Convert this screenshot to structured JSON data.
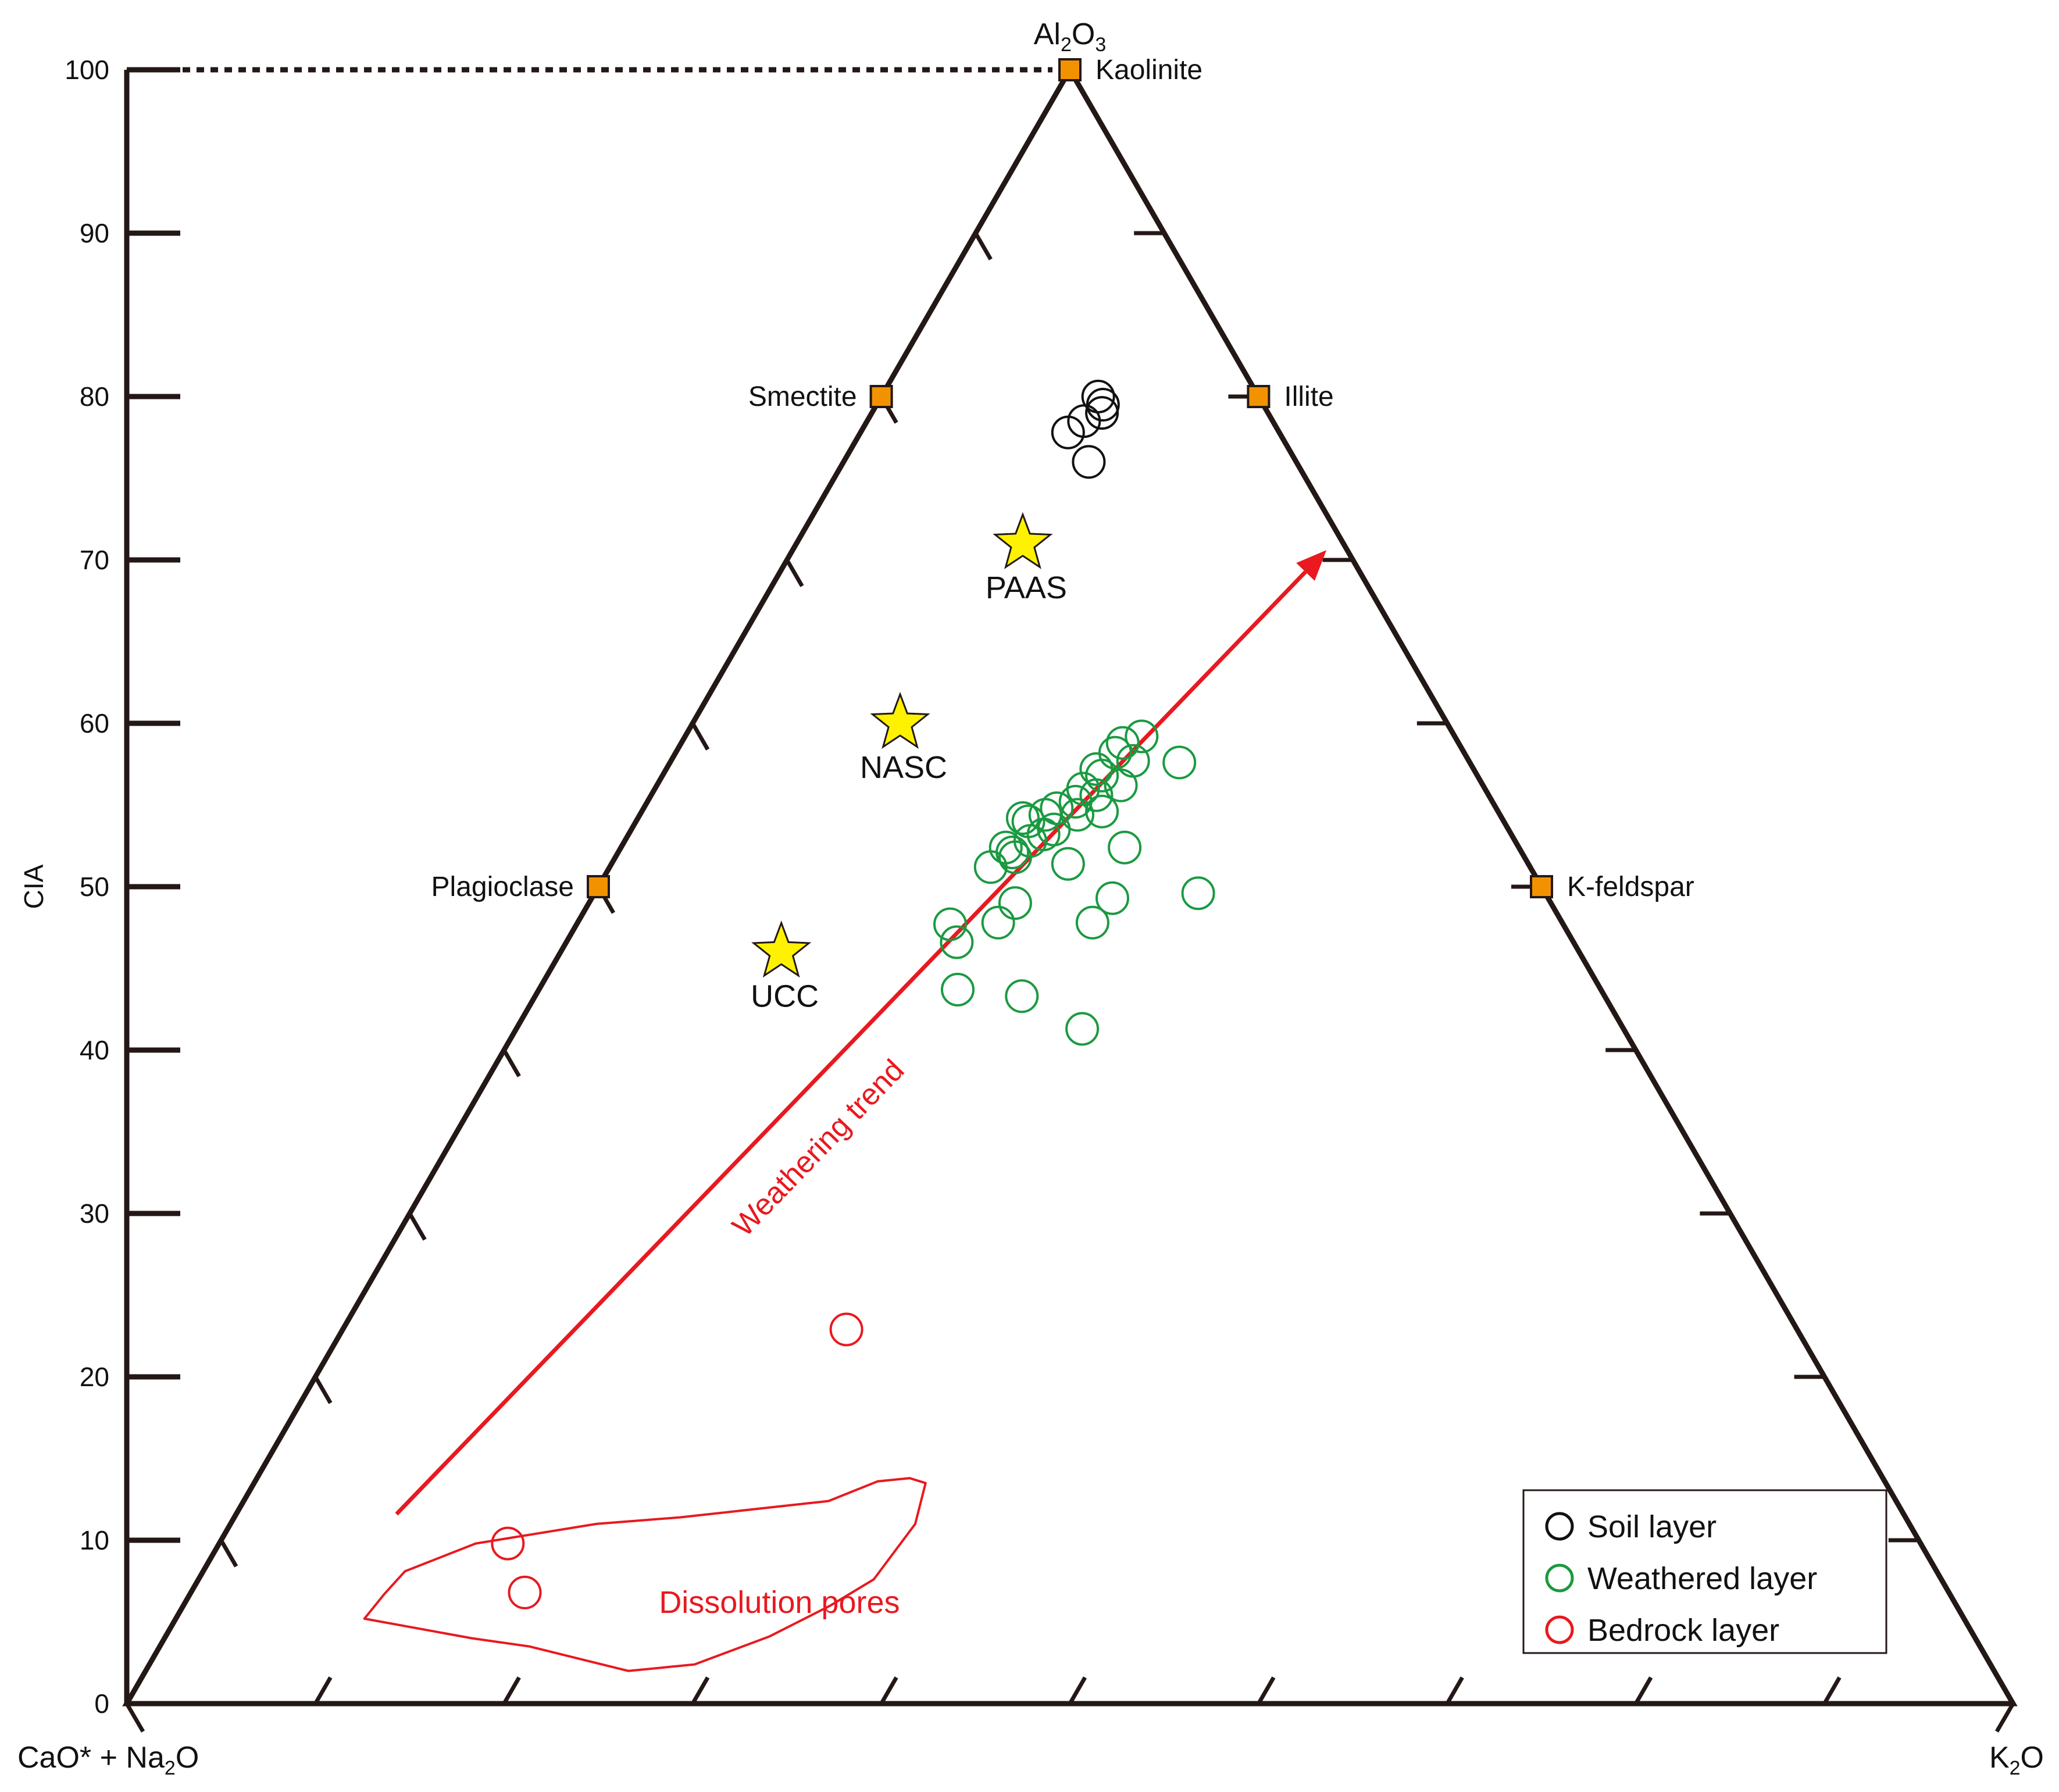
{
  "chart_data": {
    "type": "scatter",
    "diagram": "A-CN-K ternary",
    "axis": {
      "label": "CIA",
      "ylim": [
        0,
        100
      ],
      "ticks": [
        "0",
        "10",
        "20",
        "30",
        "40",
        "50",
        "60",
        "70",
        "80",
        "90",
        "100"
      ]
    },
    "vertices": {
      "top": {
        "main": "Al",
        "sub1": "2",
        "mid": "O",
        "sub2": "3"
      },
      "left": {
        "pre": "CaO* + Na",
        "sub": "2",
        "post": "O"
      },
      "right": {
        "pre": "K",
        "sub": "2",
        "post": "O"
      }
    },
    "minerals": [
      {
        "name": "Kaolinite",
        "a": 100,
        "k": 0
      },
      {
        "name": "Smectite",
        "a": 80,
        "k": 0
      },
      {
        "name": "Illite",
        "a": 80,
        "k": 20
      },
      {
        "name": "Plagioclase",
        "a": 50,
        "k": 0
      },
      {
        "name": "K-feldspar",
        "a": 50,
        "k": 50
      }
    ],
    "references": [
      {
        "name": "PAAS",
        "a": 71,
        "k": 12
      },
      {
        "name": "NASC",
        "a": 60,
        "k": 11
      },
      {
        "name": "UCC",
        "a": 46,
        "k": 11.7
      }
    ],
    "series": [
      {
        "name": "Soil layer",
        "color": "#111111",
        "points": [
          [
            80,
            11.5
          ],
          [
            79.5,
            12
          ],
          [
            79,
            12.2
          ],
          [
            78.5,
            11.5
          ],
          [
            77.8,
            11
          ],
          [
            76,
            13
          ]
        ]
      },
      {
        "name": "Weathered layer",
        "color": "#1a9a41",
        "points": [
          [
            59.2,
            24.2
          ],
          [
            58.8,
            23.4
          ],
          [
            58.2,
            23.3
          ],
          [
            57.7,
            24.5
          ],
          [
            57.6,
            27
          ],
          [
            57.2,
            22.8
          ],
          [
            56.8,
            23.3
          ],
          [
            56.2,
            24.6
          ],
          [
            56,
            22.7
          ],
          [
            55.6,
            23.6
          ],
          [
            55.2,
            22.7
          ],
          [
            54.8,
            21.9
          ],
          [
            54.6,
            24.4
          ],
          [
            54.4,
            23.2
          ],
          [
            54.4,
            21.5
          ],
          [
            54.2,
            20.4
          ],
          [
            54,
            20.8
          ],
          [
            53.5,
            22.4
          ],
          [
            53.2,
            22
          ],
          [
            52.8,
            21.5
          ],
          [
            52.4,
            20.4
          ],
          [
            52.4,
            26.7
          ],
          [
            52.1,
            20.9
          ],
          [
            51.8,
            21.2
          ],
          [
            51.2,
            20.2
          ],
          [
            51.4,
            24.2
          ],
          [
            49.6,
            32
          ],
          [
            49.3,
            27.6
          ],
          [
            49,
            22.6
          ],
          [
            47.8,
            27.3
          ],
          [
            47.8,
            22.3
          ],
          [
            47.7,
            19.8
          ],
          [
            46.6,
            20.7
          ],
          [
            43.7,
            22.2
          ],
          [
            43.3,
            25.8
          ],
          [
            41.3,
            30
          ]
        ]
      },
      {
        "name": "Bedrock layer",
        "color": "#e8191f",
        "points": [
          [
            22.9,
            26.7
          ],
          [
            9.8,
            15.3
          ],
          [
            6.8,
            17.7
          ]
        ]
      }
    ],
    "annotations": {
      "trend_label": "Weathering trend",
      "trend_start": [
        11.6,
        8.5
      ],
      "trend_end": [
        70.6,
        28.3
      ],
      "region_label": "Dissolution pores",
      "region": [
        [
          6.7,
          10.3
        ],
        [
          8.1,
          10.7
        ],
        [
          9.8,
          13.6
        ],
        [
          11,
          19.4
        ],
        [
          11.4,
          23.6
        ],
        [
          12.4,
          31
        ],
        [
          13.6,
          33
        ],
        [
          13.8,
          34.6
        ],
        [
          13.5,
          35.6
        ],
        [
          11,
          36.3
        ],
        [
          7.6,
          35.8
        ],
        [
          6,
          34.3
        ],
        [
          4.1,
          32
        ],
        [
          2.4,
          28.9
        ],
        [
          2,
          25.6
        ],
        [
          3.5,
          19.6
        ],
        [
          4,
          16.3
        ],
        [
          5.2,
          10
        ]
      ]
    },
    "legend": {
      "position": "bottom-right",
      "items": [
        "Soil layer",
        "Weathered layer",
        "Bedrock layer"
      ]
    }
  }
}
